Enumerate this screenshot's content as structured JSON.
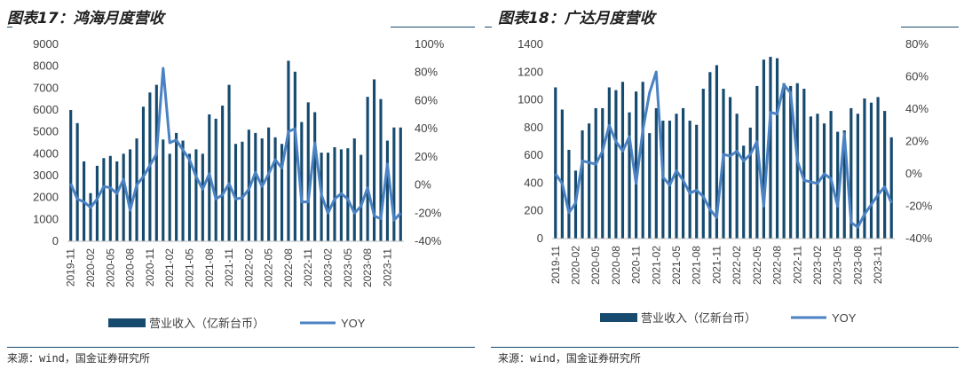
{
  "left": {
    "title": "图表17：鸿海月度营收",
    "source": "来源：wind，国金证券研究所",
    "legend_bar": "营业收入（亿新台币）",
    "legend_line": "YOY"
  },
  "right": {
    "title": "图表18：广达月度营收",
    "source": "来源：wind，国金证券研究所",
    "legend_bar": "营业收入（亿新台币）",
    "legend_line": "YOY"
  },
  "colors": {
    "bar": "#164a6e",
    "line": "#4a82c3",
    "rule": "#17496e"
  },
  "chart_data": [
    {
      "type": "bar",
      "title": "图表17：鸿海月度营收",
      "ylim": [
        0,
        9000
      ],
      "y2lim": [
        -40,
        100
      ],
      "yticks": [
        0,
        1000,
        2000,
        3000,
        4000,
        5000,
        6000,
        7000,
        8000,
        9000
      ],
      "y2ticks": [
        "-40%",
        "-20%",
        "0%",
        "20%",
        "40%",
        "60%",
        "80%",
        "100%"
      ],
      "categories": [
        "2019-11",
        "2019-12",
        "2020-01",
        "2020-02",
        "2020-03",
        "2020-04",
        "2020-05",
        "2020-06",
        "2020-07",
        "2020-08",
        "2020-09",
        "2020-10",
        "2020-11",
        "2020-12",
        "2021-01",
        "2021-02",
        "2021-03",
        "2021-04",
        "2021-05",
        "2021-06",
        "2021-07",
        "2021-08",
        "2021-09",
        "2021-10",
        "2021-11",
        "2021-12",
        "2022-01",
        "2022-02",
        "2022-03",
        "2022-04",
        "2022-05",
        "2022-06",
        "2022-07",
        "2022-08",
        "2022-09",
        "2022-10",
        "2022-11",
        "2022-12",
        "2023-01",
        "2023-02",
        "2023-03",
        "2023-04",
        "2023-05",
        "2023-06",
        "2023-07",
        "2023-08",
        "2023-09",
        "2023-10",
        "2023-11",
        "2023-12",
        "2024-01"
      ],
      "xtick_labels": [
        "2019-11",
        "2020-02",
        "2020-05",
        "2020-08",
        "2020-11",
        "2021-02",
        "2021-05",
        "2021-08",
        "2021-11",
        "2022-02",
        "2022-05",
        "2022-08",
        "2022-11",
        "2023-02",
        "2023-05",
        "2023-08",
        "2023-11"
      ],
      "series": [
        {
          "name": "营业收入（亿新台币）",
          "kind": "bar",
          "values": [
            6000,
            5400,
            3650,
            2200,
            3450,
            3800,
            3900,
            3650,
            4000,
            4200,
            4700,
            6150,
            6800,
            7150,
            4650,
            4000,
            4950,
            4600,
            4000,
            4200,
            4000,
            5800,
            5600,
            6200,
            7150,
            4450,
            4550,
            5100,
            4950,
            4700,
            5200,
            4750,
            4450,
            8250,
            7750,
            5450,
            6350,
            5900,
            4050,
            4050,
            4300,
            4200,
            4250,
            4700,
            3950,
            6600,
            7400,
            6500,
            4600,
            5200,
            5200
          ],
          "axis": "left"
        },
        {
          "name": "YOY",
          "kind": "line",
          "values": [
            1,
            -10,
            -12,
            -16,
            -10,
            -1,
            -2,
            -6,
            4,
            -18,
            0,
            6,
            14,
            22,
            83,
            30,
            32,
            25,
            18,
            6,
            -3,
            8,
            -10,
            -7,
            1,
            -10,
            -9,
            -3,
            9,
            -1,
            8,
            18,
            12,
            38,
            40,
            -12,
            -12,
            30,
            -7,
            -20,
            -10,
            -6,
            -10,
            -20,
            -15,
            -2,
            -22,
            -24,
            15,
            -25,
            -20
          ],
          "axis": "right"
        }
      ]
    },
    {
      "type": "bar",
      "title": "图表18：广达月度营收",
      "ylim": [
        0,
        1400
      ],
      "y2lim": [
        -40,
        80
      ],
      "yticks": [
        0,
        200,
        400,
        600,
        800,
        1000,
        1200,
        1400
      ],
      "y2ticks": [
        "-40%",
        "-20%",
        "0%",
        "20%",
        "40%",
        "60%",
        "80%"
      ],
      "categories": [
        "2019-11",
        "2019-12",
        "2020-01",
        "2020-02",
        "2020-03",
        "2020-04",
        "2020-05",
        "2020-06",
        "2020-07",
        "2020-08",
        "2020-09",
        "2020-10",
        "2020-11",
        "2020-12",
        "2021-01",
        "2021-02",
        "2021-03",
        "2021-04",
        "2021-05",
        "2021-06",
        "2021-07",
        "2021-08",
        "2021-09",
        "2021-10",
        "2021-11",
        "2021-12",
        "2022-01",
        "2022-02",
        "2022-03",
        "2022-04",
        "2022-05",
        "2022-06",
        "2022-07",
        "2022-08",
        "2022-09",
        "2022-10",
        "2022-11",
        "2022-12",
        "2023-01",
        "2023-02",
        "2023-03",
        "2023-04",
        "2023-05",
        "2023-06",
        "2023-07",
        "2023-08",
        "2023-09",
        "2023-10",
        "2023-11",
        "2023-12",
        "2024-01"
      ],
      "xtick_labels": [
        "2019-11",
        "2020-02",
        "2020-05",
        "2020-08",
        "2020-11",
        "2021-02",
        "2021-05",
        "2021-08",
        "2021-11",
        "2022-02",
        "2022-05",
        "2022-08",
        "2022-11",
        "2023-02",
        "2023-05",
        "2023-08",
        "2023-11"
      ],
      "series": [
        {
          "name": "营业收入（亿新台币）",
          "kind": "bar",
          "values": [
            1090,
            930,
            640,
            490,
            780,
            830,
            940,
            940,
            1090,
            1070,
            1130,
            910,
            1060,
            1130,
            760,
            940,
            850,
            850,
            900,
            940,
            850,
            820,
            1080,
            1200,
            1250,
            1080,
            1020,
            900,
            670,
            800,
            1100,
            1290,
            1310,
            1300,
            1120,
            1100,
            1120,
            1080,
            880,
            900,
            830,
            920,
            770,
            780,
            940,
            900,
            1010,
            980,
            1020,
            920,
            730
          ],
          "axis": "left"
        },
        {
          "name": "YOY",
          "kind": "line",
          "values": [
            0,
            -6,
            -24,
            -18,
            8,
            7,
            6,
            14,
            30,
            20,
            14,
            23,
            -6,
            27,
            50,
            63,
            -2,
            -7,
            2,
            -4,
            -12,
            -10,
            -14,
            -22,
            -27,
            12,
            11,
            14,
            8,
            12,
            20,
            -20,
            38,
            37,
            55,
            50,
            8,
            -4,
            -5,
            -6,
            0,
            -3,
            -20,
            25,
            -30,
            -33,
            -25,
            -19,
            -13,
            -8,
            -18
          ],
          "axis": "right"
        }
      ]
    }
  ]
}
